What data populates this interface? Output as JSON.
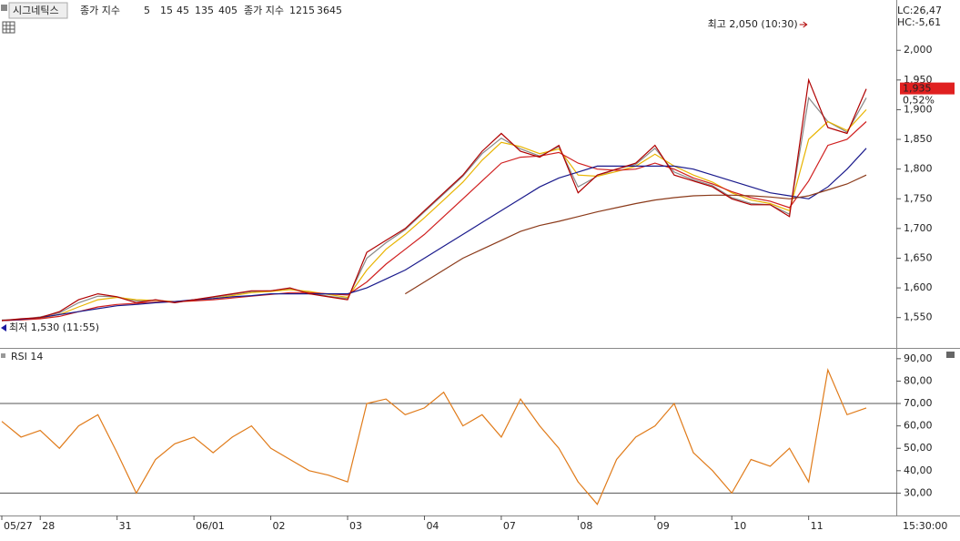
{
  "chart_data": [
    {
      "type": "line",
      "title": "시그네틱스",
      "legend_label": "종가 지수",
      "legend2_label": "종가 지수",
      "legend2_periods": [
        "1215",
        "3645"
      ],
      "legend2_color": "#2a7a2a",
      "categories": [
        "05/27",
        null,
        "28",
        null,
        null,
        null,
        "31",
        null,
        null,
        null,
        "06/01",
        null,
        null,
        null,
        "02",
        null,
        null,
        null,
        "03",
        null,
        null,
        null,
        "04",
        null,
        null,
        null,
        "07",
        null,
        null,
        null,
        "08",
        null,
        null,
        null,
        "09",
        null,
        null,
        null,
        "10",
        null,
        null,
        null,
        "11",
        null,
        null,
        null
      ],
      "values": [
        1545,
        1548,
        1550,
        1560,
        1580,
        1590,
        1585,
        1575,
        1580,
        1575,
        1580,
        1585,
        1590,
        1595,
        1595,
        1600,
        1590,
        1585,
        1580,
        1660,
        1680,
        1700,
        1730,
        1760,
        1790,
        1830,
        1860,
        1830,
        1820,
        1840,
        1760,
        1790,
        1800,
        1810,
        1840,
        1790,
        1780,
        1770,
        1750,
        1740,
        1740,
        1720,
        1950,
        1870,
        1860,
        1935
      ],
      "color": "#b00000",
      "series": [
        {
          "name": "5",
          "color": "#888888",
          "values": [
            1546,
            1547,
            1551,
            1558,
            1575,
            1586,
            1585,
            1578,
            1579,
            1576,
            1580,
            1584,
            1589,
            1594,
            1595,
            1599,
            1592,
            1586,
            1582,
            1650,
            1676,
            1698,
            1728,
            1758,
            1788,
            1826,
            1852,
            1834,
            1822,
            1838,
            1770,
            1788,
            1800,
            1808,
            1835,
            1795,
            1782,
            1772,
            1752,
            1742,
            1740,
            1724,
            1920,
            1880,
            1862,
            1920
          ]
        },
        {
          "name": "15",
          "color": "#e8b400",
          "values": [
            1545,
            1547,
            1549,
            1555,
            1568,
            1580,
            1584,
            1580,
            1579,
            1577,
            1578,
            1582,
            1587,
            1592,
            1594,
            1597,
            1594,
            1589,
            1584,
            1630,
            1665,
            1690,
            1718,
            1748,
            1778,
            1815,
            1845,
            1838,
            1826,
            1834,
            1790,
            1788,
            1796,
            1805,
            1825,
            1805,
            1790,
            1778,
            1760,
            1748,
            1742,
            1730,
            1850,
            1880,
            1865,
            1900
          ]
        },
        {
          "name": "45",
          "color": "#d02020",
          "values": [
            1545,
            1546,
            1548,
            1552,
            1560,
            1568,
            1572,
            1574,
            1576,
            1577,
            1578,
            1580,
            1583,
            1586,
            1589,
            1592,
            1592,
            1590,
            1588,
            1610,
            1640,
            1665,
            1690,
            1720,
            1750,
            1780,
            1810,
            1820,
            1822,
            1828,
            1810,
            1800,
            1798,
            1800,
            1810,
            1800,
            1785,
            1775,
            1762,
            1752,
            1746,
            1735,
            1780,
            1840,
            1850,
            1880
          ]
        },
        {
          "name": "135",
          "color": "#1a1a8c",
          "values": [
            1545,
            1547,
            1550,
            1555,
            1560,
            1565,
            1570,
            1572,
            1575,
            1577,
            1580,
            1582,
            1585,
            1587,
            1590,
            1590,
            1590,
            1590,
            1590,
            1600,
            1615,
            1630,
            1650,
            1670,
            1690,
            1710,
            1730,
            1750,
            1770,
            1785,
            1795,
            1805,
            1805,
            1805,
            1805,
            1805,
            1800,
            1790,
            1780,
            1770,
            1760,
            1755,
            1750,
            1770,
            1800,
            1835
          ]
        },
        {
          "name": "405",
          "color": "#8b3a1a",
          "values": [
            null,
            null,
            null,
            null,
            null,
            null,
            null,
            null,
            null,
            null,
            null,
            null,
            null,
            null,
            null,
            null,
            null,
            null,
            null,
            null,
            null,
            1590,
            1610,
            1630,
            1650,
            1665,
            1680,
            1695,
            1705,
            1712,
            1720,
            1728,
            1735,
            1742,
            1748,
            1752,
            1755,
            1756,
            1756,
            1755,
            1753,
            1750,
            1755,
            1765,
            1775,
            1790
          ]
        }
      ],
      "ylim": [
        1502,
        2077
      ],
      "yticks": [
        {
          "value": 1550,
          "label": "1,550"
        },
        {
          "value": 1600,
          "label": "1,600"
        },
        {
          "value": 1650,
          "label": "1,650"
        },
        {
          "value": 1700,
          "label": "1,700"
        },
        {
          "value": 1750,
          "label": "1,750"
        },
        {
          "value": 1800,
          "label": "1,800"
        },
        {
          "value": 1850,
          "label": "1,850"
        },
        {
          "value": 1900,
          "label": "1,900"
        },
        {
          "value": 1950,
          "label": "1,950"
        },
        {
          "value": 2000,
          "label": "2,000"
        }
      ],
      "grid": false,
      "annotations": {
        "high": "최고 2,050 (10:30)",
        "low": "최저 1,530 (11:55)",
        "lc": "LC:26,47",
        "hc": "HC:-5,61",
        "change": "0,52%"
      },
      "last_price": {
        "value": 1935,
        "label": "1,935"
      },
      "time_label": "15:30:00"
    },
    {
      "type": "line",
      "title": "RSI 14",
      "color": "#e07b1a",
      "values": [
        62,
        55,
        58,
        50,
        60,
        65,
        48,
        30,
        45,
        52,
        55,
        48,
        55,
        60,
        50,
        45,
        40,
        38,
        35,
        70,
        72,
        65,
        68,
        75,
        60,
        65,
        55,
        72,
        60,
        50,
        35,
        25,
        45,
        55,
        60,
        70,
        48,
        40,
        30,
        45,
        42,
        50,
        35,
        85,
        65,
        68
      ],
      "ylim": [
        20,
        94
      ],
      "yticks": [
        {
          "value": 30,
          "label": "30,00"
        },
        {
          "value": 40,
          "label": "40,00"
        },
        {
          "value": 50,
          "label": "50,00"
        },
        {
          "value": 60,
          "label": "60,00"
        },
        {
          "value": 70,
          "label": "70,00"
        },
        {
          "value": 80,
          "label": "80,00"
        },
        {
          "value": 90,
          "label": "90,00"
        }
      ],
      "ref_lines": [
        70,
        30
      ]
    }
  ]
}
